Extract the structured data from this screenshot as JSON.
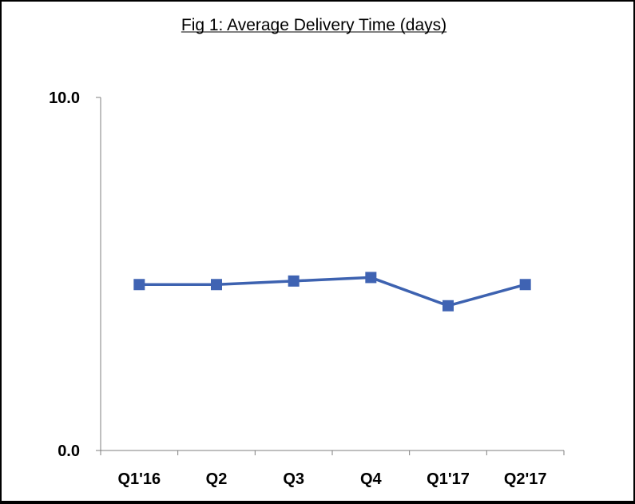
{
  "chart_data": {
    "type": "line",
    "title": "Fig 1: Average Delivery Time (days)",
    "xlabel": "",
    "ylabel": "",
    "categories": [
      "Q1'16",
      "Q2",
      "Q3",
      "Q4",
      "Q1'17",
      "Q2'17"
    ],
    "series": [
      {
        "values": [
          4.7,
          4.7,
          4.8,
          4.9,
          4.1,
          4.7
        ]
      }
    ],
    "ylim": [
      0.0,
      10.0
    ],
    "y_tick_labels": [
      "0.0",
      "10.0"
    ],
    "grid": false,
    "legend": "none",
    "colors": {
      "line": "#3d62b0",
      "marker": "#3f63b3",
      "axis": "#7f7f7f"
    }
  }
}
